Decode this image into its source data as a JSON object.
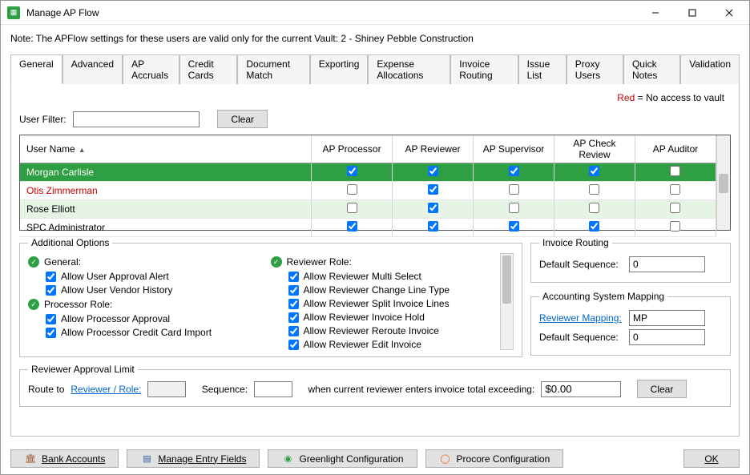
{
  "window": {
    "title": "Manage AP Flow"
  },
  "note": "Note:  The APFlow settings for these users are valid only for the current Vault: 2 - Shiney Pebble Construction",
  "legend": {
    "red_label": "Red",
    "suffix": " = No access to vault"
  },
  "tabs": [
    "General",
    "Advanced",
    "AP Accruals",
    "Credit Cards",
    "Document Match",
    "Exporting",
    "Expense Allocations",
    "Invoice Routing",
    "Issue List",
    "Proxy Users",
    "Quick Notes",
    "Validation"
  ],
  "active_tab_index": 0,
  "filter": {
    "label": "User Filter:",
    "value": "",
    "clear": "Clear"
  },
  "grid": {
    "columns": [
      "User Name",
      "AP Processor",
      "AP Reviewer",
      "AP Supervisor",
      "AP Check Review",
      "AP Auditor"
    ],
    "rows": [
      {
        "name": "Morgan Carlisle",
        "selected": true,
        "noaccess": false,
        "alt": false,
        "checks": [
          true,
          true,
          true,
          true,
          false
        ]
      },
      {
        "name": "Otis Zimmerman",
        "selected": false,
        "noaccess": true,
        "alt": false,
        "checks": [
          false,
          true,
          false,
          false,
          false
        ]
      },
      {
        "name": "Rose Elliott",
        "selected": false,
        "noaccess": false,
        "alt": true,
        "checks": [
          false,
          true,
          false,
          false,
          false
        ]
      },
      {
        "name": "SPC Administrator",
        "selected": false,
        "noaccess": false,
        "alt": false,
        "checks": [
          true,
          true,
          true,
          true,
          false
        ]
      }
    ]
  },
  "additional_options": {
    "legend": "Additional Options",
    "groups": [
      {
        "title": "General:",
        "items": [
          {
            "label": "Allow User Approval Alert",
            "checked": true
          },
          {
            "label": "Allow User Vendor History",
            "checked": true
          }
        ]
      },
      {
        "title": "Processor Role:",
        "items": [
          {
            "label": "Allow Processor Approval",
            "checked": true
          },
          {
            "label": "Allow Processor Credit Card Import",
            "checked": true
          }
        ]
      },
      {
        "title": "Reviewer Role:",
        "items": [
          {
            "label": "Allow Reviewer Multi Select",
            "checked": true
          },
          {
            "label": "Allow Reviewer Change Line Type",
            "checked": true
          },
          {
            "label": "Allow Reviewer Split Invoice Lines",
            "checked": true
          },
          {
            "label": "Allow Reviewer Invoice Hold",
            "checked": true
          },
          {
            "label": "Allow Reviewer Reroute Invoice",
            "checked": true
          },
          {
            "label": "Allow Reviewer Edit Invoice",
            "checked": true
          }
        ]
      }
    ]
  },
  "invoice_routing": {
    "legend": "Invoice Routing",
    "default_sequence_label": "Default Sequence:",
    "default_sequence_value": "0"
  },
  "accounting_mapping": {
    "legend": "Accounting System Mapping",
    "reviewer_mapping_label": "Reviewer Mapping:",
    "reviewer_mapping_value": "MP",
    "default_sequence_label": "Default Sequence:",
    "default_sequence_value": "0"
  },
  "reviewer_approval_limit": {
    "legend": "Reviewer Approval Limit",
    "route_to": "Route to",
    "reviewer_role_label": "Reviewer / Role:",
    "reviewer_role_value": "",
    "sequence_label": "Sequence:",
    "sequence_value": "",
    "when_label": "when current reviewer enters invoice total exceeding:",
    "amount_value": "$0.00",
    "clear": "Clear"
  },
  "bottom_buttons": {
    "bank_accounts": "Bank Accounts",
    "manage_entry_fields": "Manage Entry Fields",
    "greenlight": "Greenlight Configuration",
    "procore": "Procore Configuration",
    "ok": "OK"
  },
  "colors": {
    "selected_row": "#2ea043",
    "alt_row": "#e6f4e6",
    "noaccess": "#cc0000",
    "link": "#0066cc"
  }
}
